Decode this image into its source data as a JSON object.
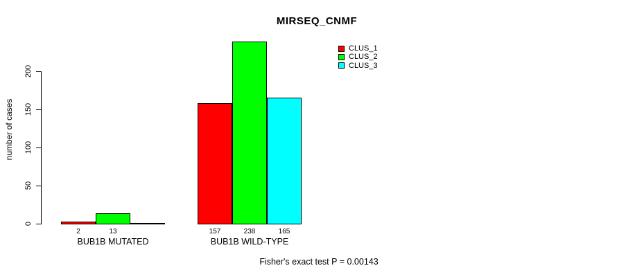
{
  "title": "MIRSEQ_CNMF",
  "footer": "Fisher's exact test P = 0.00143",
  "y_axis": {
    "label": "number of cases",
    "ticks": [
      0,
      50,
      100,
      150,
      200
    ]
  },
  "legend": {
    "items": [
      {
        "label": "CLUS_1",
        "color": "#ff0000"
      },
      {
        "label": "CLUS_2",
        "color": "#00ff00"
      },
      {
        "label": "CLUS_3",
        "color": "#00ffff"
      }
    ]
  },
  "chart_data": {
    "type": "bar",
    "title": "MIRSEQ_CNMF",
    "xlabel": "",
    "ylabel": "number of cases",
    "ylim": [
      0,
      240
    ],
    "yticks": [
      0,
      50,
      100,
      150,
      200
    ],
    "grid": false,
    "legend_position": "top-right",
    "categories": [
      "BUB1B MUTATED",
      "BUB1B WILD-TYPE"
    ],
    "series": [
      {
        "name": "CLUS_1",
        "color": "#ff0000",
        "values": [
          2,
          157
        ]
      },
      {
        "name": "CLUS_2",
        "color": "#00ff00",
        "values": [
          13,
          238
        ]
      },
      {
        "name": "CLUS_3",
        "color": "#00ffff",
        "values": [
          0,
          165
        ]
      }
    ],
    "bar_value_labels": [
      [
        "2",
        "13",
        ""
      ],
      [
        "157",
        "238",
        "165"
      ]
    ],
    "annotation": "Fisher's exact test P = 0.00143"
  }
}
